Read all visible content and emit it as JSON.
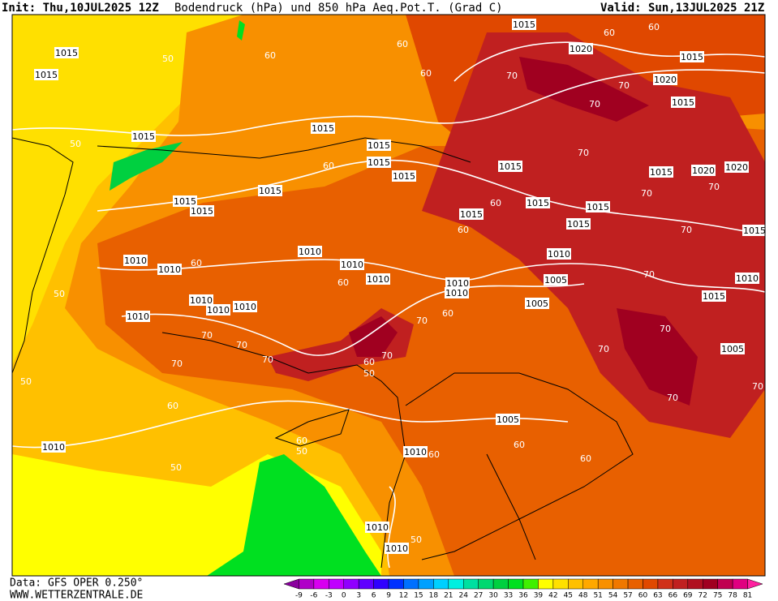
{
  "header": {
    "init": "Init: Thu,10JUL2025 12Z",
    "title": "Bodendruck (hPa) und 850 hPa Aeq.Pot.T. (Grad C)",
    "valid": "Valid: Sun,13JUL2025 21Z"
  },
  "footer": {
    "source": "Data: GFS OPER 0.250°",
    "site": "WWW.WETTERZENTRALE.DE"
  },
  "colorbar": {
    "labels": [
      -9,
      -6,
      -3,
      0,
      3,
      6,
      9,
      12,
      15,
      18,
      21,
      24,
      27,
      30,
      33,
      36,
      39,
      42,
      45,
      48,
      51,
      54,
      57,
      60,
      63,
      66,
      69,
      72,
      75,
      78,
      81
    ],
    "colors": [
      "#8a009e",
      "#b000c8",
      "#d800f0",
      "#c000ff",
      "#9000ff",
      "#6000ff",
      "#3000ff",
      "#0030ff",
      "#0070ff",
      "#00a0ff",
      "#00d0ff",
      "#00f0e0",
      "#00e0a0",
      "#00d870",
      "#00d040",
      "#00e020",
      "#40f000",
      "#ffff00",
      "#ffe000",
      "#ffc000",
      "#ffa800",
      "#f89000",
      "#f07800",
      "#e86000",
      "#e04800",
      "#d03018",
      "#c02020",
      "#b01020",
      "#a00020",
      "#c00050",
      "#e00080",
      "#ff20a0"
    ]
  },
  "contour_labels": [
    "1015",
    "1015",
    "50",
    "1015",
    "50",
    "1015",
    "1015",
    "1015",
    "1015",
    "60",
    "1015",
    "1015",
    "1015",
    "1015",
    "1020",
    "1015",
    "1020",
    "1015",
    "1015",
    "1015",
    "1015",
    "1015",
    "1015",
    "1015",
    "1020",
    "1020",
    "1015",
    "1010",
    "1010",
    "1010",
    "1010",
    "1010",
    "1010",
    "1010",
    "1010",
    "1010",
    "1010",
    "1010",
    "1010",
    "1005",
    "1005",
    "1010",
    "1015",
    "1005",
    "1005",
    "1010",
    "1010",
    "1010",
    "1010",
    "60",
    "60",
    "60",
    "60",
    "70",
    "70",
    "70",
    "70",
    "70",
    "60",
    "50",
    "70",
    "60",
    "50",
    "50",
    "60",
    "50",
    "60",
    "60",
    "60",
    "50",
    "70",
    "70",
    "70",
    "70",
    "70",
    "70",
    "70",
    "70",
    "70",
    "70",
    "70",
    "70",
    "60",
    "60",
    "60",
    "60",
    "50",
    "60",
    "60"
  ]
}
